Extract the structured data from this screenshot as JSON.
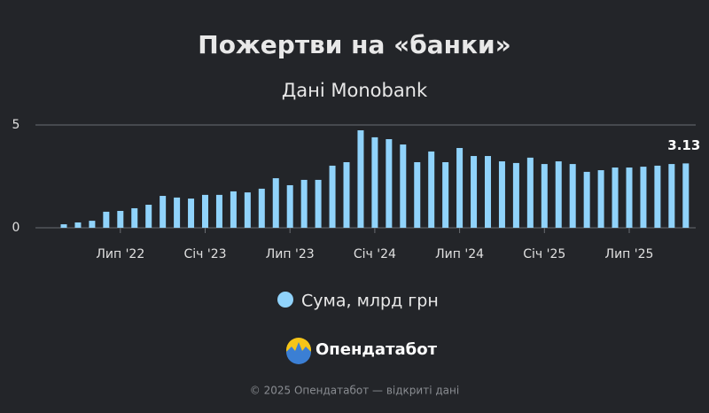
{
  "chart_data": {
    "type": "bar",
    "title": "Пожертви на «банки»",
    "subtitle": "Дані Monobank",
    "categories": [
      null,
      null,
      null,
      null,
      "Лип '22",
      null,
      null,
      null,
      null,
      null,
      "Січ '23",
      null,
      null,
      null,
      null,
      null,
      "Лип '23",
      null,
      null,
      null,
      null,
      null,
      "Січ '24",
      null,
      null,
      null,
      null,
      null,
      "Лип '24",
      null,
      null,
      null,
      null,
      null,
      "Січ '25",
      null,
      null,
      null,
      null,
      null,
      "Лип '25",
      null,
      null,
      null,
      null
    ],
    "series": [
      {
        "name": "Сума, млрд грн",
        "color": "#90d3fb",
        "values": [
          0.17,
          0.26,
          0.34,
          0.78,
          0.82,
          0.95,
          1.12,
          1.55,
          1.47,
          1.42,
          1.6,
          1.6,
          1.77,
          1.72,
          1.9,
          2.41,
          2.07,
          2.33,
          2.33,
          3.02,
          3.19,
          4.74,
          4.4,
          4.31,
          4.05,
          3.19,
          3.71,
          3.19,
          3.88,
          3.49,
          3.49,
          3.23,
          3.15,
          3.41,
          3.1,
          3.23,
          3.1,
          2.72,
          2.8,
          2.93,
          2.93,
          2.97,
          3.02,
          3.1,
          3.13
        ]
      }
    ],
    "ylim": [
      0,
      5
    ],
    "yticks": [
      0,
      5
    ],
    "grid": true
  },
  "brand": "Опендатабот",
  "footer": "© 2025 Опендатабот — відкриті дані"
}
